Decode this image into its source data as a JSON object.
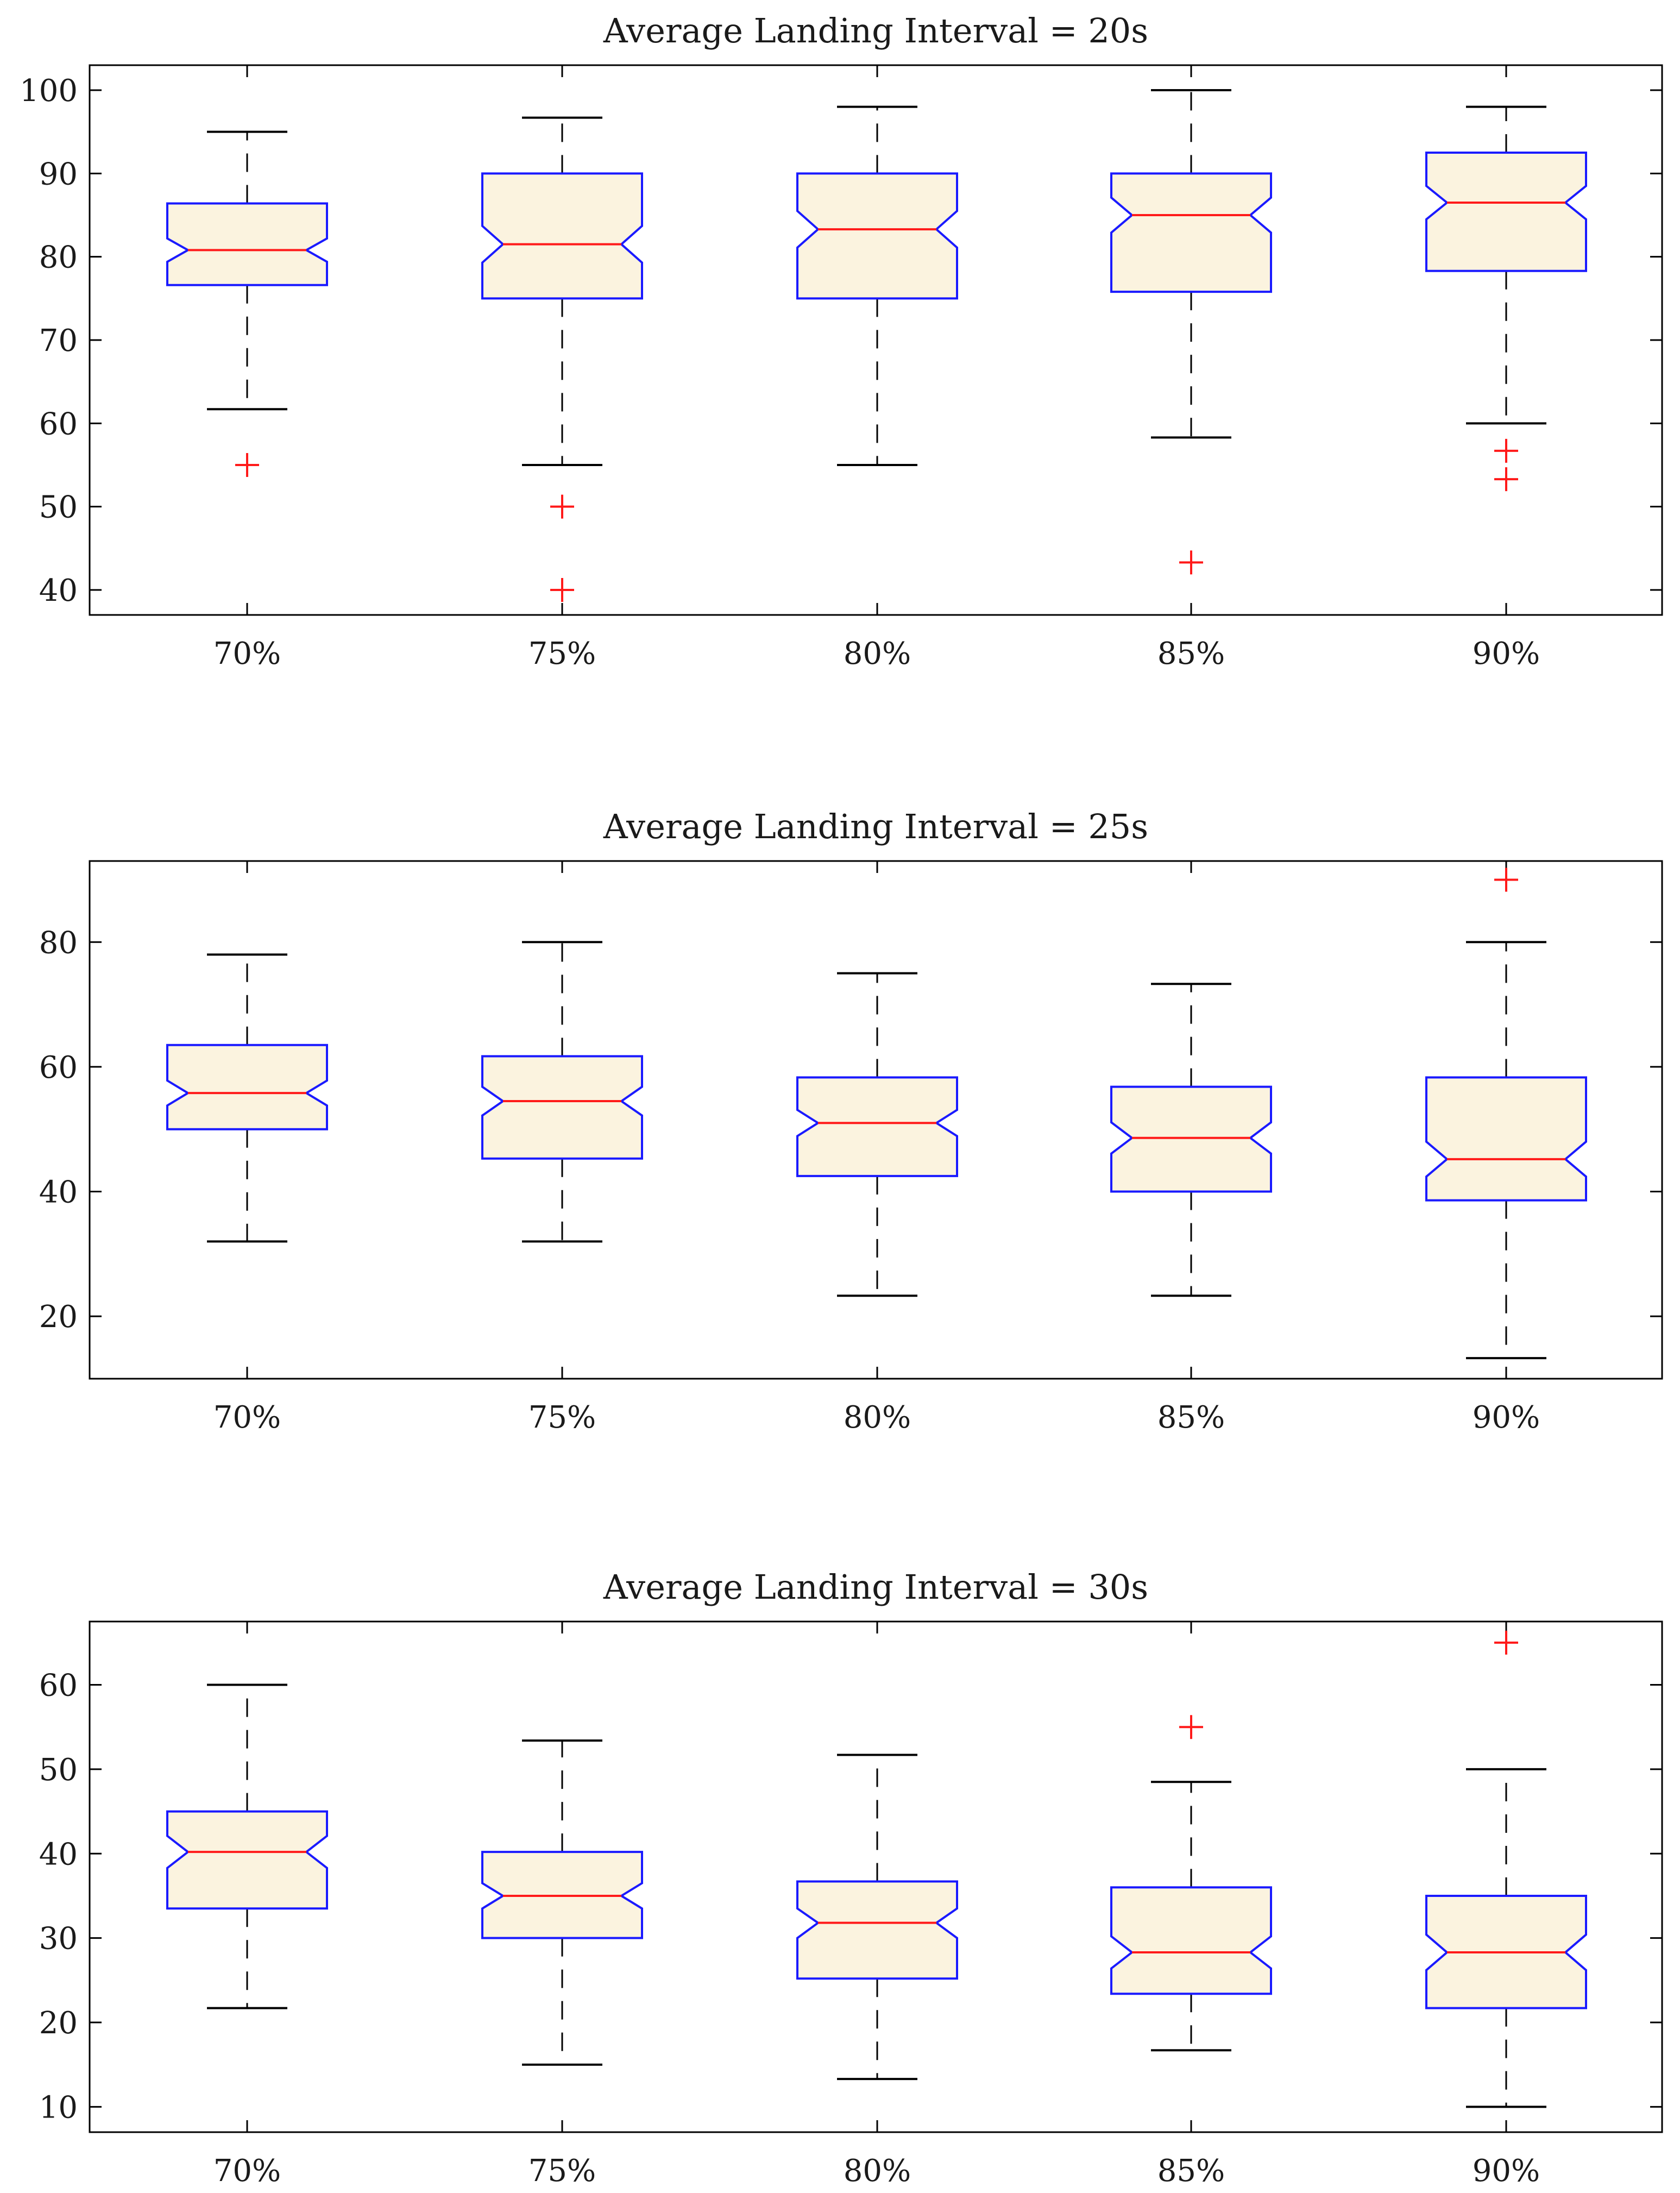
{
  "chart_data": [
    {
      "type": "boxplot",
      "title": "Average Landing Interval = 20s",
      "categories": [
        "70%",
        "75%",
        "80%",
        "85%",
        "90%"
      ],
      "ylim": [
        37,
        103
      ],
      "yticks": [
        40,
        50,
        60,
        70,
        80,
        90,
        100
      ],
      "boxes": [
        {
          "category": "70%",
          "whisker_low": 61.7,
          "q1": 76.6,
          "median": 80.8,
          "q3": 86.4,
          "whisker_high": 95,
          "notch_low": 79.4,
          "notch_high": 82.2,
          "outliers": [
            55
          ]
        },
        {
          "category": "75%",
          "whisker_low": 55,
          "q1": 75,
          "median": 81.5,
          "q3": 90,
          "whisker_high": 96.7,
          "notch_low": 79.3,
          "notch_high": 83.7,
          "outliers": [
            50,
            40
          ]
        },
        {
          "category": "80%",
          "whisker_low": 55,
          "q1": 75,
          "median": 83.3,
          "q3": 90,
          "whisker_high": 98,
          "notch_low": 81.1,
          "notch_high": 85.5,
          "outliers": []
        },
        {
          "category": "85%",
          "whisker_low": 58.3,
          "q1": 75.8,
          "median": 85,
          "q3": 90,
          "whisker_high": 100,
          "notch_low": 82.9,
          "notch_high": 87.1,
          "outliers": [
            43.3
          ]
        },
        {
          "category": "90%",
          "whisker_low": 60,
          "q1": 78.3,
          "median": 86.5,
          "q3": 92.5,
          "whisker_high": 98,
          "notch_low": 84.5,
          "notch_high": 88.5,
          "outliers": [
            56.7,
            53.3
          ]
        }
      ]
    },
    {
      "type": "boxplot",
      "title": "Average Landing Interval = 25s",
      "categories": [
        "70%",
        "75%",
        "80%",
        "85%",
        "90%"
      ],
      "ylim": [
        10,
        93
      ],
      "yticks": [
        20,
        40,
        60,
        80
      ],
      "boxes": [
        {
          "category": "70%",
          "whisker_low": 32,
          "q1": 50,
          "median": 55.8,
          "q3": 63.5,
          "whisker_high": 78,
          "notch_low": 53.8,
          "notch_high": 57.8,
          "outliers": []
        },
        {
          "category": "75%",
          "whisker_low": 32,
          "q1": 45.3,
          "median": 54.5,
          "q3": 61.7,
          "whisker_high": 80,
          "notch_low": 52.2,
          "notch_high": 56.8,
          "outliers": []
        },
        {
          "category": "80%",
          "whisker_low": 23.3,
          "q1": 42.5,
          "median": 51,
          "q3": 58.3,
          "whisker_high": 75,
          "notch_low": 48.9,
          "notch_high": 53.1,
          "outliers": []
        },
        {
          "category": "85%",
          "whisker_low": 23.3,
          "q1": 40,
          "median": 48.6,
          "q3": 56.8,
          "whisker_high": 73.3,
          "notch_low": 46.1,
          "notch_high": 51.1,
          "outliers": []
        },
        {
          "category": "90%",
          "whisker_low": 13.3,
          "q1": 38.6,
          "median": 45.2,
          "q3": 58.3,
          "whisker_high": 80,
          "notch_low": 42.4,
          "notch_high": 48,
          "outliers": [
            90
          ]
        }
      ]
    },
    {
      "type": "boxplot",
      "title": "Average Landing Interval = 30s",
      "categories": [
        "70%",
        "75%",
        "80%",
        "85%",
        "90%"
      ],
      "ylim": [
        7,
        67.5
      ],
      "yticks": [
        10,
        20,
        30,
        40,
        50,
        60
      ],
      "boxes": [
        {
          "category": "70%",
          "whisker_low": 21.7,
          "q1": 33.5,
          "median": 40.2,
          "q3": 45,
          "whisker_high": 60,
          "notch_low": 38.3,
          "notch_high": 42.1,
          "outliers": []
        },
        {
          "category": "75%",
          "whisker_low": 15,
          "q1": 30,
          "median": 35,
          "q3": 40.2,
          "whisker_high": 53.4,
          "notch_low": 33.5,
          "notch_high": 36.5,
          "outliers": []
        },
        {
          "category": "80%",
          "whisker_low": 13.3,
          "q1": 25.2,
          "median": 31.8,
          "q3": 36.7,
          "whisker_high": 51.7,
          "notch_low": 30,
          "notch_high": 33.5,
          "outliers": []
        },
        {
          "category": "85%",
          "whisker_low": 16.7,
          "q1": 23.4,
          "median": 28.3,
          "q3": 36,
          "whisker_high": 48.5,
          "notch_low": 26.4,
          "notch_high": 30.2,
          "outliers": [
            55
          ]
        },
        {
          "category": "90%",
          "whisker_low": 10,
          "q1": 21.7,
          "median": 28.3,
          "q3": 35,
          "whisker_high": 50,
          "notch_low": 26.2,
          "notch_high": 30.4,
          "outliers": [
            65
          ]
        }
      ]
    }
  ],
  "colors": {
    "box_fill": "#fbf3df",
    "box_edge": "#1a1aff",
    "median": "#ff1a1a",
    "whisker": "#000000",
    "outlier": "#ff1a1a",
    "axis": "#000000"
  }
}
